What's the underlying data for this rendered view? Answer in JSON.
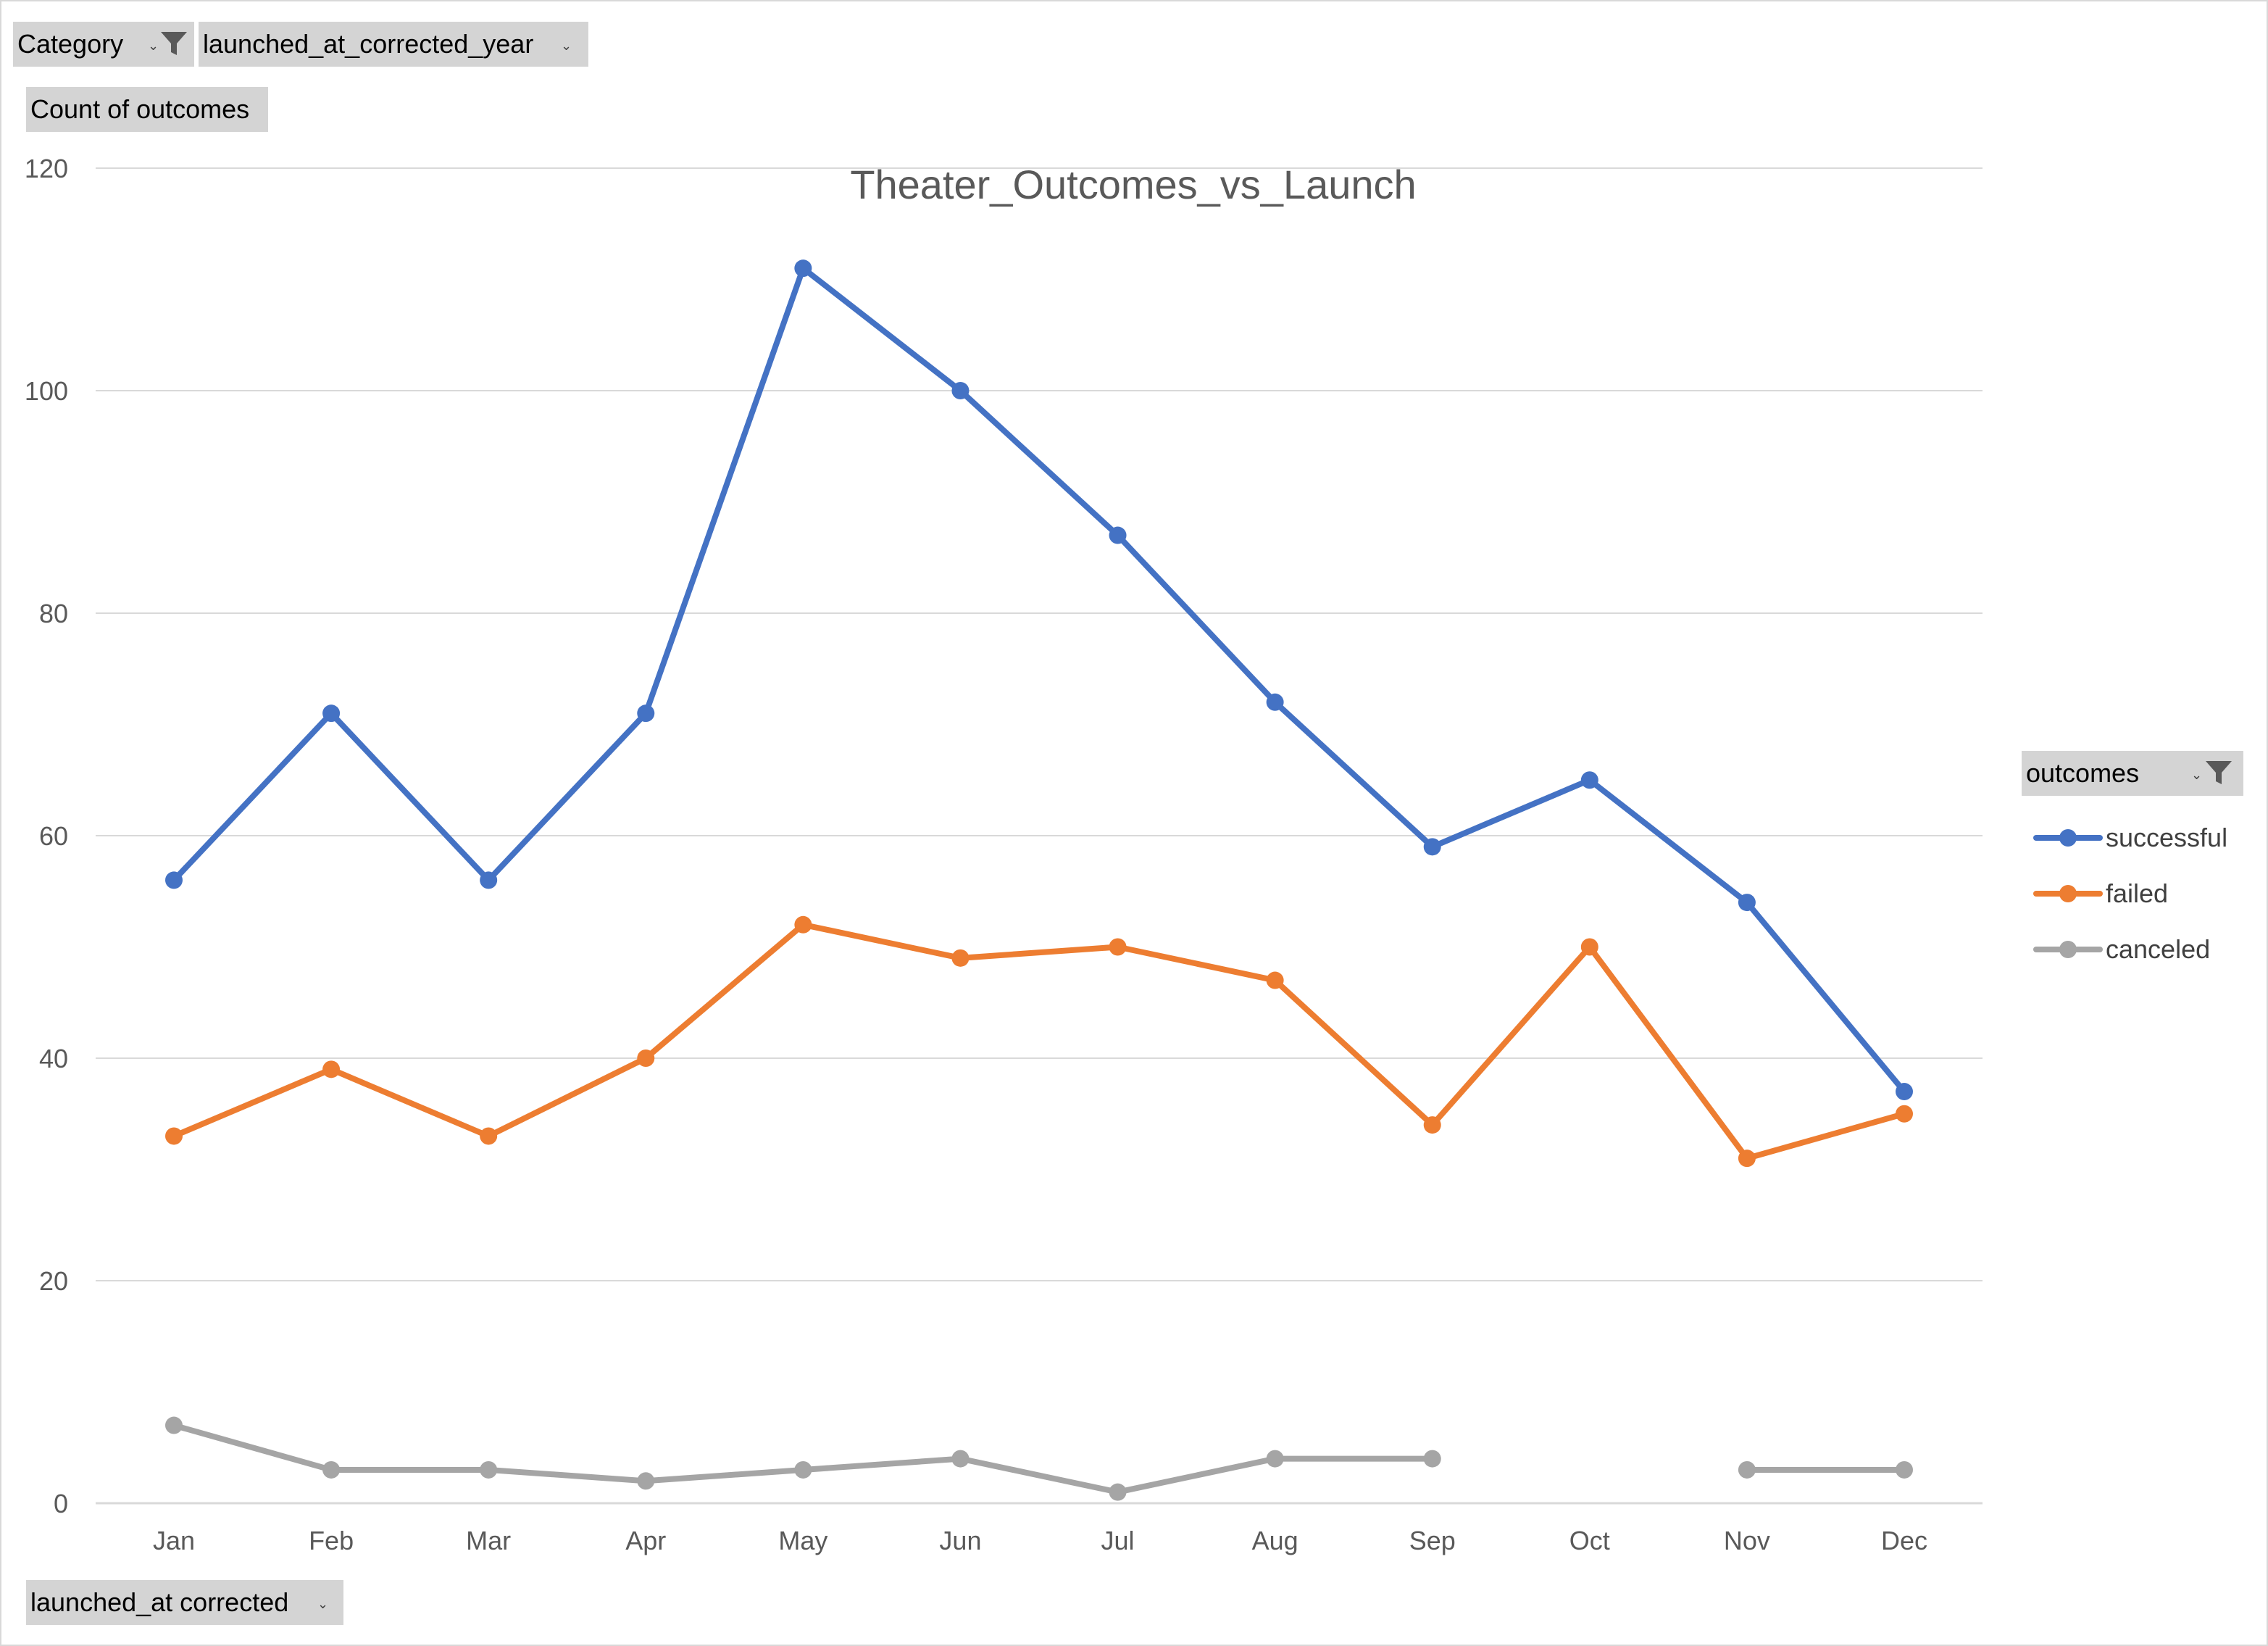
{
  "filters": {
    "category_label": "Category",
    "year_label": "launched_at_corrected_year",
    "values_label": "Count of outcomes",
    "axis_field_label": "launched_at corrected",
    "legend_field_label": "outcomes"
  },
  "colors": {
    "successful": "#4472C4",
    "failed": "#ED7D31",
    "canceled": "#A5A5A5",
    "gridline": "#d9d9d9",
    "axis_text": "#595959",
    "field_button": "#d4d4d4"
  },
  "chart_data": {
    "type": "line",
    "title": "Theater_Outcomes_vs_Launch",
    "xlabel": "",
    "ylabel": "",
    "categories": [
      "Jan",
      "Feb",
      "Mar",
      "Apr",
      "May",
      "Jun",
      "Jul",
      "Aug",
      "Sep",
      "Oct",
      "Nov",
      "Dec"
    ],
    "ylim": [
      0,
      120
    ],
    "yticks": [
      0,
      20,
      40,
      60,
      80,
      100,
      120
    ],
    "grid": true,
    "legend_position": "right",
    "series": [
      {
        "name": "successful",
        "values": [
          56,
          71,
          56,
          71,
          111,
          100,
          87,
          72,
          59,
          65,
          54,
          37
        ]
      },
      {
        "name": "failed",
        "values": [
          33,
          39,
          33,
          40,
          52,
          49,
          50,
          47,
          34,
          50,
          31,
          35
        ]
      },
      {
        "name": "canceled",
        "values": [
          7,
          3,
          3,
          2,
          3,
          4,
          1,
          4,
          4,
          null,
          3,
          3
        ]
      }
    ]
  }
}
